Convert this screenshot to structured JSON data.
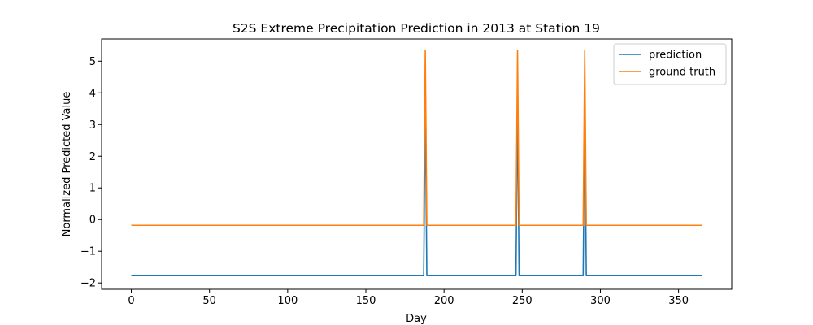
{
  "chart_data": {
    "type": "line",
    "title": "S2S Extreme Precipitation Prediction in 2013 at Station 19",
    "xlabel": "Day",
    "ylabel": "Normalized Predicted Value",
    "xlim": [
      -19,
      384
    ],
    "ylim": [
      -2.2,
      5.7
    ],
    "xticks": [
      0,
      50,
      100,
      150,
      200,
      250,
      300,
      350
    ],
    "yticks": [
      -2,
      -1,
      0,
      1,
      2,
      3,
      4,
      5
    ],
    "ytick_labels": [
      "−2",
      "−1",
      "0",
      "1",
      "2",
      "3",
      "4",
      "5"
    ],
    "grid": false,
    "legend_position": "top-right",
    "series": [
      {
        "name": "prediction",
        "color": "#1f77b4",
        "x": [
          0,
          187,
          188,
          189,
          246,
          247,
          248,
          289,
          290,
          291,
          365
        ],
        "y": [
          -1.77,
          -1.77,
          3.8,
          -1.77,
          -1.77,
          3.8,
          -1.77,
          -1.77,
          3.85,
          -1.77,
          -1.77
        ]
      },
      {
        "name": "ground truth",
        "color": "#ff7f0e",
        "x": [
          0,
          187,
          188,
          189,
          246,
          247,
          248,
          289,
          290,
          291,
          365
        ],
        "y": [
          -0.18,
          -0.18,
          5.33,
          -0.18,
          -0.18,
          5.33,
          -0.18,
          -0.18,
          5.33,
          -0.18,
          -0.18
        ]
      }
    ]
  }
}
